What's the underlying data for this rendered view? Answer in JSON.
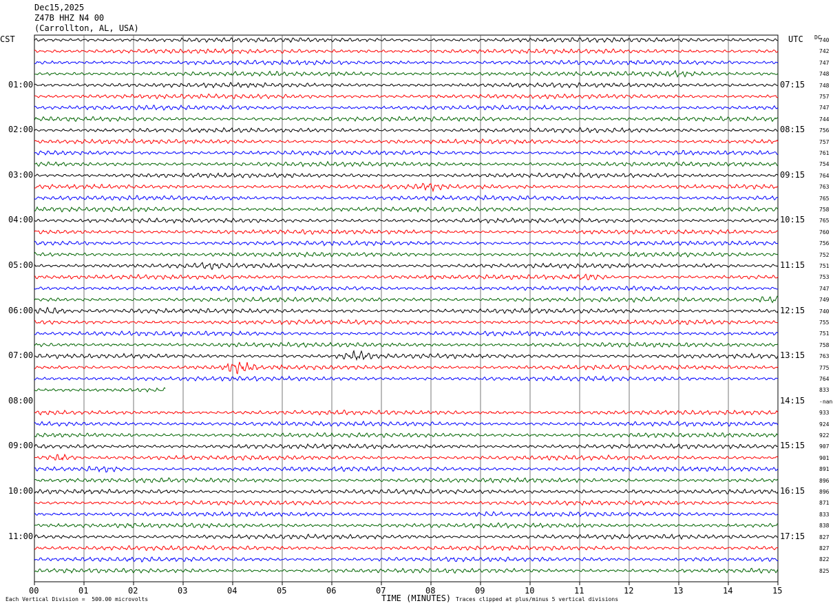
{
  "header": {
    "date": "Dec15,2025",
    "station": "Z47B HHZ N4 00",
    "location": "(Carrollton, AL, USA)"
  },
  "labels": {
    "left_tz": "CST",
    "right_tz": "UTC",
    "dc": "DC",
    "xlabel": "TIME (MINUTES)",
    "scale_note": "Each Vertical Division =  500.00 microvolts",
    "clip_note": "Traces clipped at plus/minus 5 vertical divisions"
  },
  "chart_data": {
    "type": "line",
    "title": "",
    "xlabel": "TIME (MINUTES)",
    "ylabel": "",
    "xlim": [
      0,
      15
    ],
    "x_ticks": [
      "00",
      "01",
      "02",
      "03",
      "04",
      "05",
      "06",
      "07",
      "08",
      "09",
      "10",
      "11",
      "12",
      "13",
      "14",
      "15"
    ],
    "left_hour_labels": [
      "01:00",
      "02:00",
      "03:00",
      "04:00",
      "05:00",
      "06:00",
      "07:00",
      "08:00",
      "09:00",
      "10:00",
      "11:00"
    ],
    "right_hour_labels": [
      "07:15",
      "08:15",
      "09:15",
      "10:15",
      "11:15",
      "12:15",
      "13:15",
      "14:15",
      "15:15",
      "16:15",
      "17:15"
    ],
    "row_colors": [
      "#000000",
      "#ff0000",
      "#0000ff",
      "#006400"
    ],
    "dc_offsets": [
      "740",
      "742",
      "747",
      "748",
      "748",
      "757",
      "747",
      "744",
      "756",
      "757",
      "761",
      "754",
      "764",
      "763",
      "765",
      "758",
      "765",
      "760",
      "756",
      "752",
      "751",
      "753",
      "747",
      "749",
      "740",
      "755",
      "751",
      "758",
      "763",
      "775",
      "764",
      "833",
      "-nan",
      "933",
      "924",
      "922",
      "907",
      "901",
      "891",
      "896",
      "896",
      "871",
      "833",
      "838",
      "827",
      "827",
      "822",
      "825"
    ],
    "gap_row": 32,
    "partial_row": {
      "row": 31,
      "end_minute": 2.65
    },
    "events": [
      {
        "row": 3,
        "minute": 12.95,
        "amp": 1.8
      },
      {
        "row": 13,
        "minute": 8.0,
        "amp": 2.0
      },
      {
        "row": 24,
        "minute": 0.3,
        "amp": 3.0
      },
      {
        "row": 23,
        "minute": 14.9,
        "amp": 3.0
      },
      {
        "row": 20,
        "minute": 3.5,
        "amp": 1.6
      },
      {
        "row": 20,
        "minute": 13.6,
        "amp": 1.6
      },
      {
        "row": 21,
        "minute": 11.2,
        "amp": 2.0
      },
      {
        "row": 28,
        "minute": 6.5,
        "amp": 3.0
      },
      {
        "row": 29,
        "minute": 4.1,
        "amp": 3.4
      },
      {
        "row": 37,
        "minute": 0.5,
        "amp": 3.2
      },
      {
        "row": 38,
        "minute": 1.4,
        "amp": 2.4
      },
      {
        "row": 40,
        "minute": 11.1,
        "amp": 1.5
      },
      {
        "row": 40,
        "minute": 12.1,
        "amp": 1.5
      },
      {
        "row": 42,
        "minute": 9.1,
        "amp": 1.4
      },
      {
        "row": 46,
        "minute": 13.4,
        "amp": 1.6
      }
    ]
  }
}
